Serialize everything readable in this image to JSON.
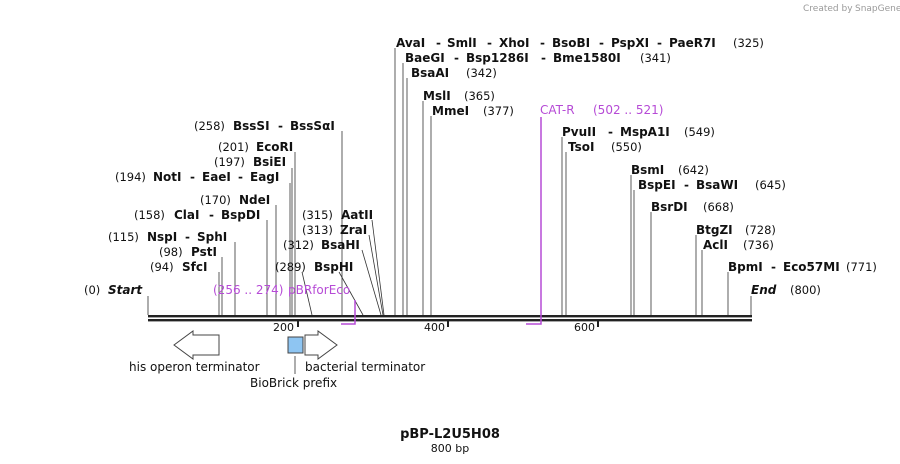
{
  "watermark": {
    "prefix": "Created by",
    "brand": "SnapGene"
  },
  "map": {
    "name": "pBP-L2U5H08",
    "length_label": "800 bp",
    "start_label": "Start",
    "start_pos": "(0)",
    "end_label": "End",
    "end_pos": "(800)"
  },
  "ticks": [
    "200",
    "400",
    "600"
  ],
  "sites": {
    "bsssi": {
      "pos": "(258)",
      "label": "BssSI",
      "alt": "BssSαI"
    },
    "ecori": {
      "pos": "(201)",
      "label": "EcoRI"
    },
    "bsiei": {
      "pos": "(197)",
      "label": "BsiEI"
    },
    "noti": {
      "pos": "(194)",
      "label": "NotI",
      "alt": "EaeI",
      "alt2": "EagI"
    },
    "ndei": {
      "pos": "(170)",
      "label": "NdeI"
    },
    "clai": {
      "pos": "(158)",
      "label": "ClaI",
      "alt": "BspDI"
    },
    "nspi": {
      "pos": "(115)",
      "label": "NspI",
      "alt": "SphI"
    },
    "psti": {
      "pos": "(98)",
      "label": "PstI"
    },
    "sfci": {
      "pos": "(94)",
      "label": "SfcI"
    },
    "aatii": {
      "pos": "(315)",
      "label": "AatII"
    },
    "zrai": {
      "pos": "(313)",
      "label": "ZraI"
    },
    "bsahi": {
      "pos": "(312)",
      "label": "BsaHI"
    },
    "bsphi": {
      "pos": "(289)",
      "label": "BspHI"
    },
    "avai": {
      "pos": "(325)",
      "labels": [
        "AvaI",
        "SmlI",
        "XhoI",
        "BsoBI",
        "PspXI",
        "PaeR7I"
      ]
    },
    "baegi": {
      "pos": "(341)",
      "labels": [
        "BaeGI",
        "Bsp1286I",
        "Bme1580I"
      ]
    },
    "bsaai": {
      "pos": "(342)",
      "label": "BsaAI"
    },
    "msli": {
      "pos": "(365)",
      "label": "MslI"
    },
    "mmei": {
      "pos": "(377)",
      "label": "MmeI"
    },
    "pvuii": {
      "pos": "(549)",
      "label": "PvuII",
      "alt": "MspA1I"
    },
    "tsoi": {
      "pos": "(550)",
      "label": "TsoI"
    },
    "bsmi": {
      "pos": "(642)",
      "label": "BsmI"
    },
    "bspei": {
      "pos": "(645)",
      "label": "BspEI",
      "alt": "BsaWI"
    },
    "bsrdi": {
      "pos": "(668)",
      "label": "BsrDI"
    },
    "btgzi": {
      "pos": "(728)",
      "label": "BtgZI"
    },
    "acli": {
      "pos": "(736)",
      "label": "AclI"
    },
    "bpmi": {
      "pos": "(771)",
      "label": "BpmI",
      "alt": "Eco57MI"
    }
  },
  "primers": {
    "pbr": {
      "range": "(256 .. 274)",
      "name": "pBRforEco"
    },
    "cat": {
      "name": "CAT-R",
      "range": "(502 .. 521)"
    }
  },
  "features": {
    "his": "his operon terminator",
    "biobrick": "BioBrick prefix",
    "bact": "bacterial terminator"
  },
  "colors": {
    "primer": "#b64bd6",
    "biobrick_fill": "#8ec5f2",
    "backbone": "#222222"
  }
}
